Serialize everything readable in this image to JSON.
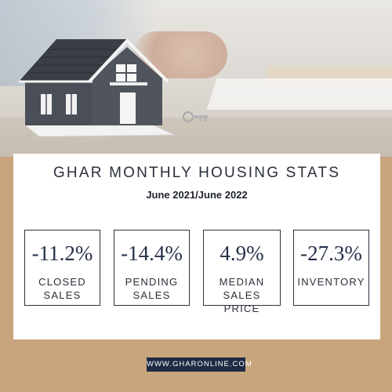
{
  "header": {
    "title": "GHAR MONTHLY HOUSING STATS",
    "subtitle": "June 2021/June 2022"
  },
  "stats": [
    {
      "value": "-11.2%",
      "label_line1": "CLOSED",
      "label_line2": "SALES"
    },
    {
      "value": "-14.4%",
      "label_line1": "PENDING",
      "label_line2": "SALES"
    },
    {
      "value": "4.9%",
      "label_line1": "MEDIAN",
      "label_line2": "SALES PRICE"
    },
    {
      "value": "-27.3%",
      "label_line1": "INVENTORY",
      "label_line2": ""
    }
  ],
  "footer": {
    "website": "WWW.GHARONLINE.COM"
  },
  "colors": {
    "background_tan": "#c8a57c",
    "card": "#ffffff",
    "navy": "#1f2a44",
    "text_dark": "#253049"
  },
  "images": {
    "hero": "house-model-photo"
  }
}
